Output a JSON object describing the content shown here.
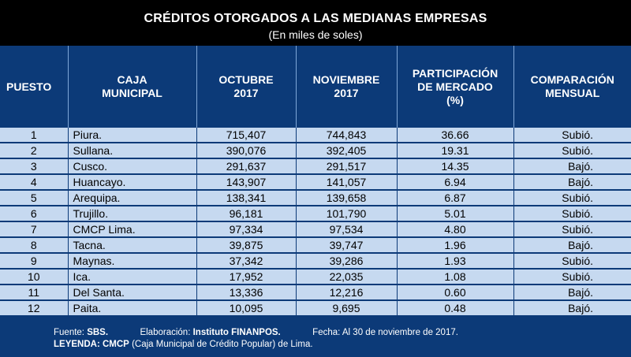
{
  "title": "CRÉDITOS OTORGADOS A LAS MEDIANAS EMPRESAS",
  "subtitle": "(En miles de soles)",
  "headers": {
    "puesto": "PUESTO",
    "caja_line1": "CAJA",
    "caja_line2": "MUNICIPAL",
    "oct_line1": "OCTUBRE",
    "oct_line2": "2017",
    "nov_line1": "NOVIEMBRE",
    "nov_line2": "2017",
    "part_line1": "PARTICIPACIÓN",
    "part_line2": "DE MERCADO",
    "part_line3": "(%)",
    "comp_line1": "COMPARACIÓN",
    "comp_line2": "MENSUAL"
  },
  "rows": [
    {
      "puesto": "1",
      "caja": "Piura.",
      "octubre": "715,407",
      "noviembre": "744,843",
      "participacion": "36.66",
      "comparacion": "Subió."
    },
    {
      "puesto": "2",
      "caja": "Sullana.",
      "octubre": "390,076",
      "noviembre": "392,405",
      "participacion": "19.31",
      "comparacion": "Subió."
    },
    {
      "puesto": "3",
      "caja": "Cusco.",
      "octubre": "291,637",
      "noviembre": "291,517",
      "participacion": "14.35",
      "comparacion": "Bajó."
    },
    {
      "puesto": "4",
      "caja": "Huancayo.",
      "octubre": "143,907",
      "noviembre": "141,057",
      "participacion": "6.94",
      "comparacion": "Bajó."
    },
    {
      "puesto": "5",
      "caja": "Arequipa.",
      "octubre": "138,341",
      "noviembre": "139,658",
      "participacion": "6.87",
      "comparacion": "Subió."
    },
    {
      "puesto": "6",
      "caja": "Trujillo.",
      "octubre": "96,181",
      "noviembre": "101,790",
      "participacion": "5.01",
      "comparacion": "Subió."
    },
    {
      "puesto": "7",
      "caja": "CMCP Lima.",
      "octubre": "97,334",
      "noviembre": "97,534",
      "participacion": "4.80",
      "comparacion": "Subió."
    },
    {
      "puesto": "8",
      "caja": "Tacna.",
      "octubre": "39,875",
      "noviembre": "39,747",
      "participacion": "1.96",
      "comparacion": "Bajó."
    },
    {
      "puesto": "9",
      "caja": "Maynas.",
      "octubre": "37,342",
      "noviembre": "39,286",
      "participacion": "1.93",
      "comparacion": "Subió."
    },
    {
      "puesto": "10",
      "caja": "Ica.",
      "octubre": "17,952",
      "noviembre": "22,035",
      "participacion": "1.08",
      "comparacion": "Subió."
    },
    {
      "puesto": "11",
      "caja": "Del Santa.",
      "octubre": "13,336",
      "noviembre": "12,216",
      "participacion": "0.60",
      "comparacion": "Bajó."
    },
    {
      "puesto": "12",
      "caja": "Paita.",
      "octubre": "10,095",
      "noviembre": "9,695",
      "participacion": "0.48",
      "comparacion": "Bajó."
    }
  ],
  "footer": {
    "fuente_label": "Fuente:",
    "fuente_value": "SBS.",
    "elaboracion_label": "Elaboración:",
    "elaboracion_value": "Instituto FINANPOS.",
    "fecha": "Fecha: Al 30 de noviembre de 2017.",
    "leyenda_label": "LEYENDA:",
    "leyenda_abbr": "CMCP",
    "leyenda_text": "(Caja Municipal de Crédito Popular) de Lima."
  },
  "colors": {
    "background": "#000000",
    "panel": "#0c3a78",
    "cell": "#c6d9f0"
  }
}
